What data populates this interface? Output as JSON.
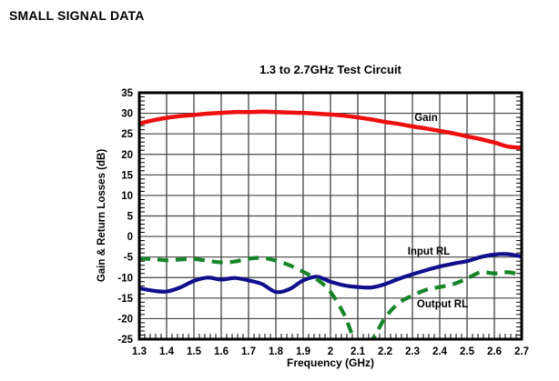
{
  "page": {
    "section_title": "SMALL SIGNAL DATA"
  },
  "chart_data": {
    "type": "line",
    "title": "1.3 to 2.7GHz Test Circuit",
    "xlabel": "Frequency (GHz)",
    "ylabel": "Gain & Return Losses (dB)",
    "xlim": [
      1.3,
      2.7
    ],
    "ylim": [
      -25,
      35
    ],
    "grid": true,
    "legend_position": "labels-inside-plot",
    "x_ticks": [
      1.3,
      1.4,
      1.5,
      1.6,
      1.7,
      1.8,
      1.9,
      2,
      2.1,
      2.2,
      2.3,
      2.4,
      2.5,
      2.6,
      2.7
    ],
    "x_tick_labels": [
      "1.3",
      "1.4",
      "1.5",
      "1.6",
      "1.7",
      "1.8",
      "1.9",
      "2",
      "2.1",
      "2.2",
      "2.3",
      "2.4",
      "2.5",
      "2.6",
      "2.7"
    ],
    "y_ticks": [
      35,
      30,
      25,
      20,
      15,
      10,
      5,
      0,
      -5,
      -10,
      -15,
      -20,
      -25
    ],
    "x_minor_step": 0.02,
    "y_minor_step": 1,
    "x": [
      1.3,
      1.35,
      1.4,
      1.45,
      1.5,
      1.55,
      1.6,
      1.65,
      1.7,
      1.75,
      1.8,
      1.85,
      1.9,
      1.95,
      2.0,
      2.05,
      2.1,
      2.15,
      2.2,
      2.25,
      2.3,
      2.35,
      2.4,
      2.45,
      2.5,
      2.55,
      2.6,
      2.65,
      2.7
    ],
    "series": [
      {
        "name": "Gain",
        "color": "#ee1010",
        "style": "solid",
        "width": 4.5,
        "label_at": {
          "x": 2.35,
          "y": 28.9
        },
        "values": [
          27.5,
          28.3,
          28.9,
          29.3,
          29.6,
          29.9,
          30.1,
          30.3,
          30.3,
          30.4,
          30.3,
          30.2,
          30.1,
          29.9,
          29.7,
          29.4,
          29.0,
          28.5,
          27.9,
          27.4,
          26.8,
          26.3,
          25.7,
          25.1,
          24.4,
          23.7,
          22.9,
          21.9,
          21.6
        ]
      },
      {
        "name": "Input RL",
        "color": "#10108c",
        "style": "solid",
        "width": 4.2,
        "label_at": {
          "x": 2.36,
          "y": -3.8
        },
        "values": [
          -12.6,
          -13.2,
          -13.4,
          -12.4,
          -10.8,
          -10.0,
          -10.5,
          -10.1,
          -10.7,
          -11.6,
          -13.5,
          -12.8,
          -10.7,
          -9.8,
          -11.0,
          -11.9,
          -12.3,
          -12.4,
          -11.6,
          -10.3,
          -9.2,
          -8.2,
          -7.3,
          -6.6,
          -6.0,
          -5.0,
          -4.4,
          -4.3,
          -4.9
        ]
      },
      {
        "name": "Output RL",
        "color": "#168428",
        "style": "dashed",
        "width": 4.2,
        "label_at": {
          "x": 2.41,
          "y": -16.6
        },
        "values": [
          -5.4,
          -5.5,
          -5.8,
          -5.6,
          -5.5,
          -5.9,
          -6.3,
          -6.1,
          -5.4,
          -5.2,
          -5.9,
          -7.0,
          -8.6,
          -10.4,
          -13.5,
          -19.0,
          -26.5,
          -25.3,
          -19.8,
          -16.2,
          -14.4,
          -13.0,
          -12.3,
          -11.6,
          -10.2,
          -8.7,
          -9.0,
          -8.7,
          -9.4
        ]
      }
    ]
  }
}
